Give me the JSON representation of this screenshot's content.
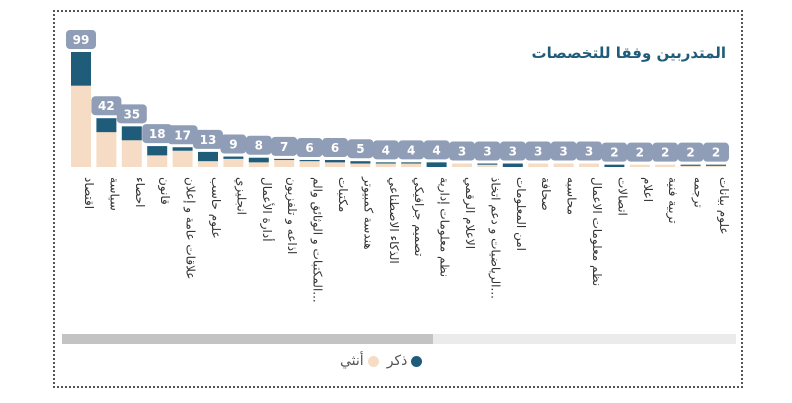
{
  "chart_data": {
    "type": "bar",
    "stacked": true,
    "title": "المتدربين وفقا للتخصصات",
    "categories": [
      "اقتصاد",
      "سياسة",
      "احصاء",
      "قانون",
      "علاقات عامة و إعلان",
      "علوم حاسب",
      "انجليزي",
      "أدارة الأعمال",
      "اذاعه و تلفزيون",
      "المكتبات و الوثائق والم...",
      "مكتبات",
      "هندسة كمبيوتر",
      "الذكاء الاصطناعي",
      "تصميم جرافيكي",
      "نظم معلومات إدارية",
      "الاعلام الرقمي",
      "الرياضيات و دعم اتخاذ...",
      "امن المعلومات",
      "صحافة",
      "محاسبه",
      "نظم معلومات الاعمال",
      "اتصالات",
      "اعلام",
      "تربية فنية",
      "ترجمه",
      "علوم بيانات"
    ],
    "totals": [
      99,
      42,
      35,
      18,
      17,
      13,
      9,
      8,
      7,
      6,
      6,
      5,
      4,
      4,
      4,
      3,
      3,
      3,
      3,
      3,
      3,
      2,
      2,
      2,
      2,
      2
    ],
    "series": [
      {
        "name": "ذكر",
        "color": "#1f5c7a",
        "values": [
          29,
          12,
          12,
          8,
          3,
          8,
          2,
          4,
          1,
          1,
          2,
          2,
          1,
          1,
          4,
          0,
          1,
          3,
          0,
          0,
          0,
          2,
          0,
          0,
          1,
          1
        ]
      },
      {
        "name": "أنثي",
        "color": "#f6dcc4",
        "values": [
          70,
          30,
          23,
          10,
          14,
          5,
          7,
          4,
          6,
          5,
          4,
          3,
          3,
          3,
          0,
          3,
          2,
          0,
          3,
          3,
          3,
          0,
          2,
          2,
          1,
          1
        ]
      }
    ],
    "ylim": [
      0,
      99
    ],
    "legend_position": "bottom",
    "grid": false
  },
  "legend": {
    "male": "ذكر",
    "female": "أنثي"
  }
}
